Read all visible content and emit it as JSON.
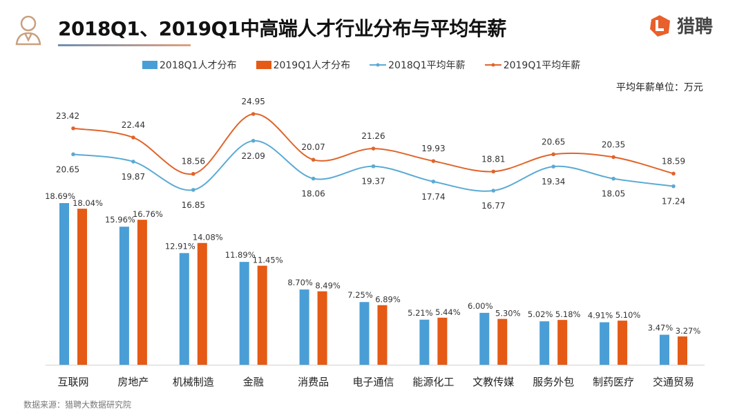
{
  "header": {
    "title": "2018Q1、2019Q1中高端人才行业分布与平均年薪",
    "logo_text": "猎聘"
  },
  "unit_note": "平均年薪单位：万元",
  "source": "数据来源：猎聘大数据研究院",
  "colors": {
    "blue": "#4a9ed6",
    "orange": "#e55a14",
    "line_blue": "#5aaad4",
    "line_orange": "#e0642a"
  },
  "chart_data": {
    "type": "bar",
    "title": "2018Q1、2019Q1中高端人才行业分布与平均年薪",
    "categories": [
      "互联网",
      "房地产",
      "机械制造",
      "金融",
      "消费品",
      "电子通信",
      "能源化工",
      "文教传媒",
      "服务外包",
      "制药医疗",
      "交通贸易"
    ],
    "series": [
      {
        "name": "2018Q1人才分布",
        "type": "bar",
        "unit": "%",
        "values": [
          18.69,
          15.96,
          12.91,
          11.89,
          8.7,
          7.25,
          5.21,
          6.0,
          5.02,
          4.91,
          3.47
        ]
      },
      {
        "name": "2019Q1人才分布",
        "type": "bar",
        "unit": "%",
        "values": [
          18.04,
          16.76,
          14.08,
          11.45,
          8.49,
          6.89,
          5.44,
          5.3,
          5.18,
          5.1,
          3.27
        ]
      },
      {
        "name": "2018Q1平均年薪",
        "type": "line",
        "unit": "万元",
        "values": [
          20.65,
          19.87,
          16.85,
          22.09,
          18.06,
          19.37,
          17.74,
          16.77,
          19.34,
          18.05,
          17.24
        ]
      },
      {
        "name": "2019Q1平均年薪",
        "type": "line",
        "unit": "万元",
        "values": [
          23.42,
          22.44,
          18.56,
          24.95,
          20.07,
          21.26,
          19.93,
          18.81,
          20.65,
          20.35,
          18.59
        ]
      }
    ],
    "legend_placement": "top",
    "grid": false
  }
}
